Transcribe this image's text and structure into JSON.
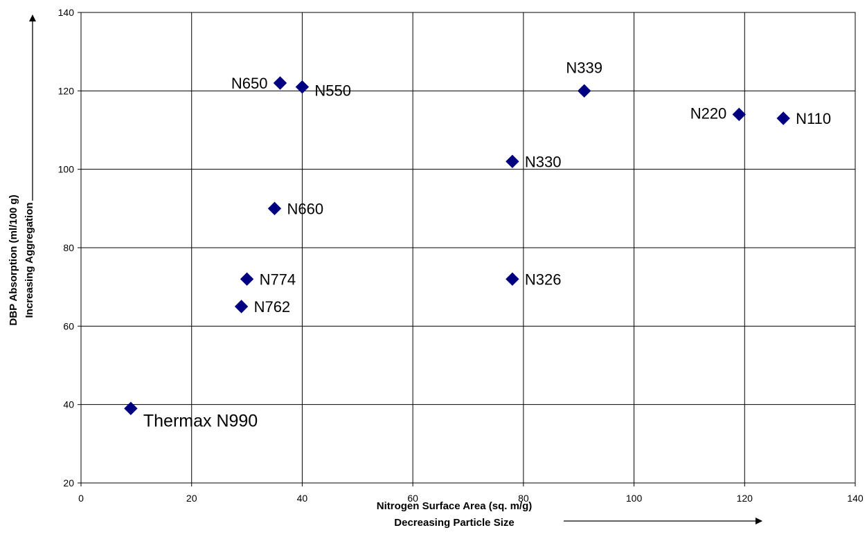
{
  "chart_data": {
    "type": "scatter",
    "xlabel": "Nitrogen Surface Area (sq. m/g)",
    "xlabel_sub": "Decreasing Particle Size",
    "ylabel": "DBP Absorption (ml/100 g)",
    "ylabel_sub": "Increasing Aggregation",
    "xlim": [
      0,
      140
    ],
    "ylim": [
      20,
      140
    ],
    "xticks": [
      0,
      20,
      40,
      60,
      80,
      100,
      120,
      140
    ],
    "yticks": [
      20,
      40,
      60,
      80,
      100,
      120,
      140
    ],
    "grid": true,
    "legend": "none",
    "marker": "diamond",
    "marker_color": "#000080",
    "points": [
      {
        "label": "Thermax N990",
        "x": 9,
        "y": 39
      },
      {
        "label": "N762",
        "x": 29,
        "y": 65
      },
      {
        "label": "N774",
        "x": 30,
        "y": 72
      },
      {
        "label": "N660",
        "x": 35,
        "y": 90
      },
      {
        "label": "N650",
        "x": 36,
        "y": 122
      },
      {
        "label": "N550",
        "x": 40,
        "y": 121
      },
      {
        "label": "N326",
        "x": 78,
        "y": 72
      },
      {
        "label": "N330",
        "x": 78,
        "y": 102
      },
      {
        "label": "N339",
        "x": 91,
        "y": 120
      },
      {
        "label": "N220",
        "x": 119,
        "y": 114
      },
      {
        "label": "N110",
        "x": 127,
        "y": 113
      }
    ]
  }
}
